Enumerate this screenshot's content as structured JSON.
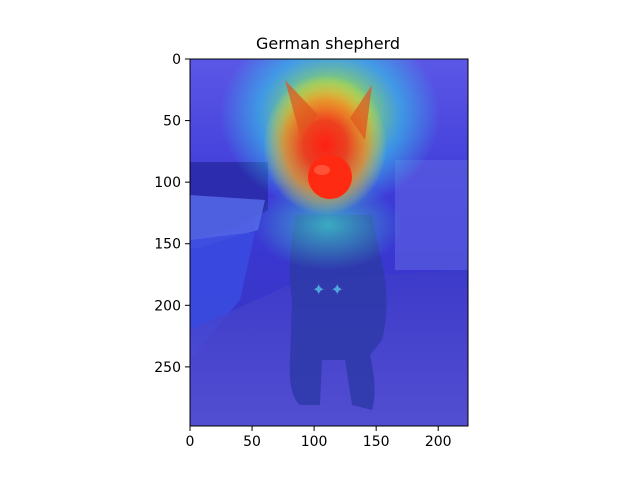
{
  "chart_data": {
    "type": "heatmap",
    "title": "German shepherd",
    "xlabel": "",
    "ylabel": "",
    "xlim": [
      0,
      224
    ],
    "ylim": [
      298,
      0
    ],
    "xticks": [
      0,
      50,
      100,
      150,
      200
    ],
    "yticks": [
      0,
      50,
      100,
      150,
      200,
      250
    ],
    "xtick_labels": [
      "0",
      "50",
      "100",
      "150",
      "200"
    ],
    "ytick_labels": [
      "0",
      "50",
      "100",
      "150",
      "200",
      "250"
    ],
    "grid": false,
    "colormap": "jet",
    "heatmap_peak": {
      "x": 117,
      "y": 95,
      "value": 1.0
    },
    "heatmap_secondary": {
      "x": 110,
      "y": 40,
      "value": 0.75
    },
    "colors": {
      "bg_low": "#2f2bd6",
      "jet_cyan": "#37d8e6",
      "jet_yellow": "#e9ef39",
      "jet_orange": "#f08a22",
      "jet_red": "#ea2b1c",
      "axis": "#000000"
    }
  }
}
